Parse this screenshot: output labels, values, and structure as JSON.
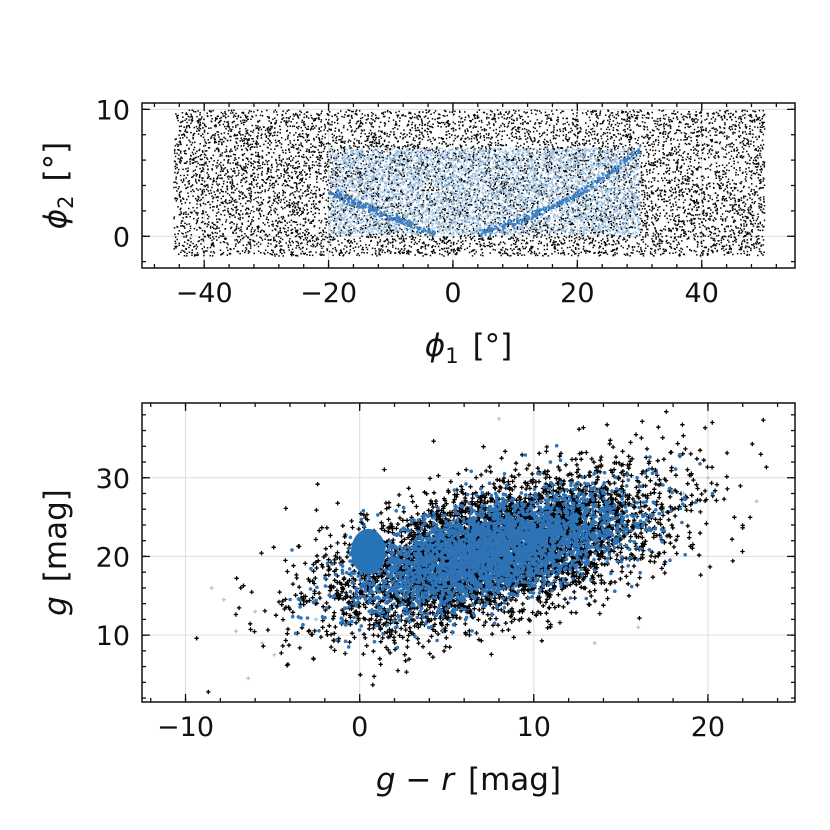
{
  "chart_data": [
    {
      "type": "scatter",
      "panel": "top",
      "xlabel": {
        "symbol": "ϕ",
        "sub": "1",
        "unit": "[°]"
      },
      "ylabel": {
        "symbol": "ϕ",
        "sub": "2",
        "unit": "[°]"
      },
      "xlim": [
        -50,
        55
      ],
      "ylim": [
        -2.5,
        10.5
      ],
      "xticks": [
        -40,
        -20,
        0,
        20,
        40
      ],
      "xtick_labels": [
        "−40",
        "−20",
        "0",
        "20",
        "40"
      ],
      "yticks": [
        0,
        10
      ],
      "ytick_labels": [
        "0",
        "10"
      ],
      "grid": true,
      "series": [
        {
          "role": "background",
          "color": "#000000",
          "distribution": "uniform",
          "x_range": [
            -45,
            50
          ],
          "y_range": [
            -1.5,
            10
          ],
          "count": 9000
        },
        {
          "role": "foreground",
          "color": "#9ec4e6",
          "distribution": "uniform",
          "x_range": [
            -20,
            30
          ],
          "y_range": [
            0.2,
            7
          ],
          "count": 5500
        },
        {
          "role": "stream",
          "color": "#3b7fc4",
          "distribution": "track",
          "x": [
            -20,
            -15,
            -10,
            -5,
            -3,
            4,
            10,
            15,
            20,
            25,
            30
          ],
          "y": [
            3.5,
            2.5,
            1.6,
            0.6,
            0.3,
            0.3,
            1.2,
            2.2,
            3.4,
            5.0,
            7.0
          ],
          "gap_x": [
            -3,
            4
          ],
          "count": 600
        }
      ]
    },
    {
      "type": "scatter",
      "panel": "bottom",
      "xlabel": {
        "symbol": "g − r",
        "unit": "[mag]"
      },
      "ylabel": {
        "symbol": "g",
        "unit": "[mag]"
      },
      "xlim": [
        -12.5,
        25
      ],
      "ylim": [
        1.5,
        39.5
      ],
      "xticks": [
        -10,
        0,
        10,
        20
      ],
      "xtick_labels": [
        "−10",
        "0",
        "10",
        "20"
      ],
      "yticks": [
        10,
        20,
        30
      ],
      "ytick_labels": [
        "10",
        "20",
        "30"
      ],
      "grid": true,
      "series": [
        {
          "role": "background",
          "color": "#000000",
          "marker": "+",
          "distribution": "gaussian",
          "mean": [
            7.5,
            20.5
          ],
          "sd": [
            4.8,
            4.9
          ],
          "correlation": 0.55,
          "count": 5000
        },
        {
          "role": "foreground",
          "color": "#2e73b5",
          "distribution": "gaussian",
          "mean": [
            7.5,
            20.5
          ],
          "sd": [
            3.8,
            3.6
          ],
          "correlation": 0.55,
          "count": 3500
        },
        {
          "role": "stream-clump",
          "color": "#2673b8",
          "distribution": "ellipse",
          "center": [
            0.5,
            20.6
          ],
          "half_width": 1.0,
          "half_height": 2.9
        },
        {
          "role": "foreground-outliers",
          "color": "#9ec4e6",
          "x": [
            -8.5,
            -7.8,
            -7.1,
            -6.4,
            -5.6,
            -4.9,
            -2.5,
            13.5,
            16.0,
            18.6,
            22.8,
            20.0,
            8.0,
            -6.0
          ],
          "y": [
            16,
            14.5,
            10.5,
            4.5,
            9.0,
            7.5,
            12.0,
            9.0,
            11.0,
            28.0,
            27.0,
            30.0,
            37.5,
            13.0
          ]
        }
      ]
    }
  ]
}
